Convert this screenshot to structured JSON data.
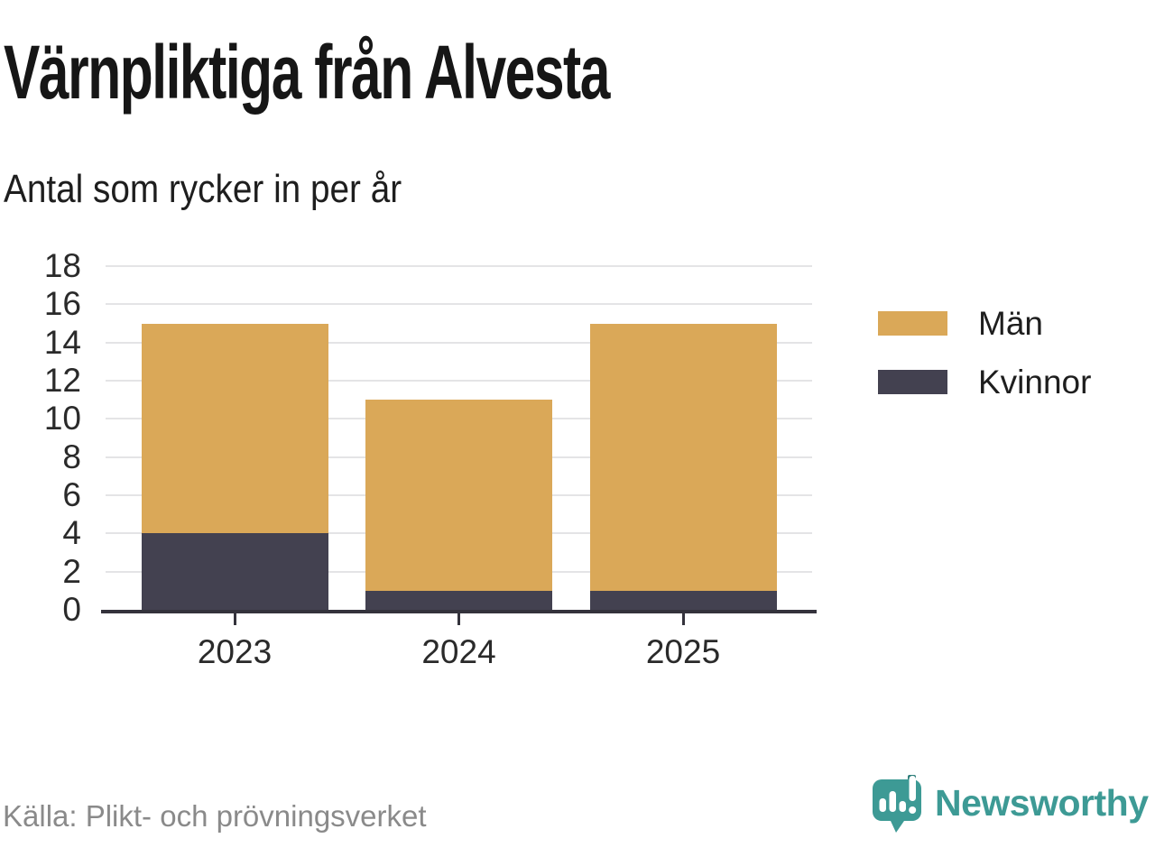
{
  "header": {
    "title": "Värnpliktiga från Alvesta",
    "subtitle": "Antal som rycker in per år"
  },
  "chart_data": {
    "type": "bar",
    "stacked": true,
    "title": "Värnpliktiga från Alvesta",
    "subtitle": "Antal som rycker in per år",
    "categories": [
      "2023",
      "2024",
      "2025"
    ],
    "series": [
      {
        "name": "Män",
        "color": "#DAA858",
        "values": [
          11,
          10,
          14
        ]
      },
      {
        "name": "Kvinnor",
        "color": "#434150",
        "values": [
          4,
          1,
          1
        ]
      }
    ],
    "stack_order_bottom_to_top": [
      "Kvinnor",
      "Män"
    ],
    "totals": [
      15,
      11,
      15
    ],
    "xlabel": "",
    "ylabel": "",
    "ylim": [
      0,
      18
    ],
    "yticks": [
      0,
      2,
      4,
      6,
      8,
      10,
      12,
      14,
      16,
      18
    ],
    "grid": "horizontal",
    "legend_position": "right"
  },
  "footer": {
    "source": "Källa: Plikt- och prövningsverket",
    "brand": "Newsworthy"
  },
  "colors": {
    "accent_teal": "#3D9A95",
    "accent_teal_dark": "#2E7E7A",
    "axis": "#34333C",
    "grid": "#E4E4E6",
    "title_text": "#161616",
    "axis_text": "#2A2A2A",
    "source_text": "#8A8A8A"
  }
}
